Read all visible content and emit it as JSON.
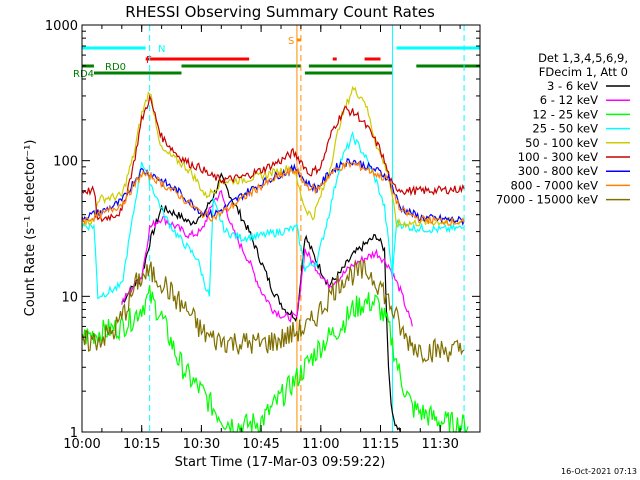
{
  "chart_data": {
    "type": "line",
    "title": "RHESSI Observing Summary Count Rates",
    "xlabel": "Start Time (17-Mar-03 09:59:22)",
    "ylabel": "Count Rate (s⁻¹ detector⁻¹)",
    "y_scale": "log",
    "ylim": [
      1,
      1000
    ],
    "xlim": [
      "10:00",
      "11:40"
    ],
    "x_ticks": [
      "10:00",
      "10:15",
      "10:30",
      "10:45",
      "11:00",
      "11:15",
      "11:30"
    ],
    "y_ticks": [
      "1",
      "10",
      "100",
      "1000"
    ],
    "timestamp": "16-Oct-2021 07:13",
    "legend": {
      "placement": "right",
      "header": [
        "Det 1,3,4,5,6,9,",
        "FDecim 1, Att 0"
      ]
    },
    "flags": [
      {
        "label": "N",
        "color": "#00ffff",
        "intervals": [
          [
            "10:00",
            "10:16"
          ],
          [
            "11:19",
            "11:40"
          ]
        ]
      },
      {
        "label": "F",
        "color": "#ff0000",
        "intervals": [
          [
            "10:16",
            "10:42"
          ],
          [
            "11:03",
            "11:04"
          ],
          [
            "11:11",
            "11:15"
          ]
        ]
      },
      {
        "label": "S",
        "color": "#ff8c00",
        "intervals": [
          [
            "10:54",
            "10:55"
          ]
        ]
      },
      {
        "label": "RD0",
        "color": "#007f00",
        "intervals": [
          [
            "10:00",
            "10:03"
          ],
          [
            "10:25",
            "10:55"
          ],
          [
            "10:57",
            "11:18"
          ],
          [
            "11:24",
            "11:40"
          ]
        ]
      },
      {
        "label": "RD4",
        "color": "#007f00",
        "intervals": [
          [
            "10:03",
            "10:25"
          ],
          [
            "10:56",
            "11:18"
          ]
        ]
      }
    ],
    "markers": [
      {
        "type": "dashed",
        "color": "#00ffff",
        "x": "10:17"
      },
      {
        "type": "solid",
        "color": "#00ffff",
        "x": "11:18"
      },
      {
        "type": "dashed",
        "color": "#00ffff",
        "x": "11:36"
      },
      {
        "type": "solid",
        "color": "#ff8c00",
        "x": "10:54"
      },
      {
        "type": "dashed",
        "color": "#ff8c00",
        "x": "10:55"
      }
    ],
    "series": [
      {
        "name": "3 - 6 keV",
        "color": "#000000",
        "points": [
          [
            "10:10",
            9
          ],
          [
            "10:13",
            12
          ],
          [
            "10:15",
            14
          ],
          [
            "10:17",
            25
          ],
          [
            "10:20",
            45
          ],
          [
            "10:24",
            40
          ],
          [
            "10:27",
            35
          ],
          [
            "10:30",
            38
          ],
          [
            "10:33",
            55
          ],
          [
            "10:35",
            75
          ],
          [
            "10:38",
            50
          ],
          [
            "10:42",
            30
          ],
          [
            "10:45",
            18
          ],
          [
            "10:48",
            11
          ],
          [
            "10:51",
            8
          ],
          [
            "10:54",
            7
          ],
          [
            "10:56",
            28
          ],
          [
            "10:59",
            18
          ],
          [
            "11:02",
            12
          ],
          [
            "11:05",
            15
          ],
          [
            "11:08",
            20
          ],
          [
            "11:11",
            24
          ],
          [
            "11:14",
            28
          ],
          [
            "11:16",
            22
          ],
          [
            "11:17",
            3
          ],
          [
            "11:18",
            1.3
          ],
          [
            "11:20",
            1
          ]
        ]
      },
      {
        "name": "6 - 12 keV",
        "color": "#ff00ff",
        "points": [
          [
            "10:10",
            9
          ],
          [
            "10:13",
            12
          ],
          [
            "10:15",
            14
          ],
          [
            "10:17",
            32
          ],
          [
            "10:20",
            38
          ],
          [
            "10:24",
            32
          ],
          [
            "10:27",
            28
          ],
          [
            "10:30",
            30
          ],
          [
            "10:33",
            50
          ],
          [
            "10:35",
            58
          ],
          [
            "10:38",
            30
          ],
          [
            "10:42",
            18
          ],
          [
            "10:45",
            11
          ],
          [
            "10:48",
            8
          ],
          [
            "10:51",
            7
          ],
          [
            "10:54",
            7
          ],
          [
            "10:56",
            22
          ],
          [
            "10:59",
            16
          ],
          [
            "11:02",
            12
          ],
          [
            "11:05",
            14
          ],
          [
            "11:08",
            17
          ],
          [
            "11:11",
            19
          ],
          [
            "11:14",
            21
          ],
          [
            "11:17",
            17
          ],
          [
            "11:20",
            11
          ],
          [
            "11:23",
            6
          ]
        ]
      },
      {
        "name": "12 - 25 keV",
        "color": "#00ff00",
        "points": [
          [
            "10:00",
            5
          ],
          [
            "10:10",
            6
          ],
          [
            "10:13",
            7
          ],
          [
            "10:17",
            10
          ],
          [
            "10:20",
            7
          ],
          [
            "10:24",
            3.5
          ],
          [
            "10:27",
            2.5
          ],
          [
            "10:30",
            2
          ],
          [
            "10:33",
            1.5
          ],
          [
            "10:36",
            1.2
          ],
          [
            "10:40",
            1.1
          ],
          [
            "10:45",
            1.2
          ],
          [
            "10:50",
            1.8
          ],
          [
            "10:54",
            2.5
          ],
          [
            "10:56",
            3
          ],
          [
            "10:59",
            4
          ],
          [
            "11:02",
            5
          ],
          [
            "11:05",
            6
          ],
          [
            "11:08",
            8
          ],
          [
            "11:11",
            9
          ],
          [
            "11:14",
            9
          ],
          [
            "11:17",
            6
          ],
          [
            "11:20",
            2.5
          ],
          [
            "11:23",
            1.5
          ],
          [
            "11:30",
            1.2
          ],
          [
            "11:37",
            1.1
          ]
        ]
      },
      {
        "name": "25 - 50 keV",
        "color": "#00ffff",
        "points": [
          [
            "10:00",
            33
          ],
          [
            "10:03",
            33
          ],
          [
            "10:04",
            10
          ],
          [
            "10:10",
            12
          ],
          [
            "10:13",
            42
          ],
          [
            "10:15",
            100
          ],
          [
            "10:18",
            60
          ],
          [
            "10:21",
            38
          ],
          [
            "10:24",
            28
          ],
          [
            "10:27",
            22
          ],
          [
            "10:29",
            19
          ],
          [
            "10:31",
            12
          ],
          [
            "10:32",
            10
          ],
          [
            "10:33",
            50
          ],
          [
            "10:36",
            30
          ],
          [
            "10:40",
            27
          ],
          [
            "10:45",
            28
          ],
          [
            "10:50",
            30
          ],
          [
            "10:54",
            32
          ],
          [
            "10:56",
            16
          ],
          [
            "10:59",
            18
          ],
          [
            "11:02",
            40
          ],
          [
            "11:05",
            100
          ],
          [
            "11:08",
            150
          ],
          [
            "11:11",
            110
          ],
          [
            "11:14",
            70
          ],
          [
            "11:16",
            45
          ],
          [
            "11:18",
            14
          ],
          [
            "11:19",
            35
          ],
          [
            "11:23",
            32
          ],
          [
            "11:30",
            31
          ],
          [
            "11:36",
            32
          ]
        ]
      },
      {
        "name": "50 - 100 keV",
        "color": "#cccc00",
        "points": [
          [
            "10:00",
            36
          ],
          [
            "10:03",
            36
          ],
          [
            "10:04",
            52
          ],
          [
            "10:10",
            55
          ],
          [
            "10:13",
            110
          ],
          [
            "10:15",
            220
          ],
          [
            "10:17",
            330
          ],
          [
            "10:20",
            120
          ],
          [
            "10:24",
            100
          ],
          [
            "10:27",
            85
          ],
          [
            "10:29",
            70
          ],
          [
            "10:31",
            55
          ],
          [
            "10:33",
            60
          ],
          [
            "10:35",
            70
          ],
          [
            "10:40",
            72
          ],
          [
            "10:45",
            77
          ],
          [
            "10:50",
            85
          ],
          [
            "10:53",
            90
          ],
          [
            "10:56",
            45
          ],
          [
            "10:58",
            38
          ],
          [
            "11:02",
            80
          ],
          [
            "11:05",
            200
          ],
          [
            "11:08",
            340
          ],
          [
            "11:11",
            280
          ],
          [
            "11:14",
            130
          ],
          [
            "11:17",
            80
          ],
          [
            "11:19",
            34
          ],
          [
            "11:25",
            35
          ],
          [
            "11:36",
            36
          ]
        ]
      },
      {
        "name": "100 - 300 keV",
        "color": "#c80000",
        "points": [
          [
            "10:00",
            60
          ],
          [
            "10:03",
            60
          ],
          [
            "10:04",
            36
          ],
          [
            "10:10",
            42
          ],
          [
            "10:13",
            95
          ],
          [
            "10:15",
            200
          ],
          [
            "10:17",
            290
          ],
          [
            "10:20",
            150
          ],
          [
            "10:24",
            110
          ],
          [
            "10:27",
            95
          ],
          [
            "10:30",
            88
          ],
          [
            "10:32",
            78
          ],
          [
            "10:35",
            72
          ],
          [
            "10:40",
            75
          ],
          [
            "10:45",
            85
          ],
          [
            "10:50",
            100
          ],
          [
            "10:53",
            115
          ],
          [
            "10:55",
            100
          ],
          [
            "10:57",
            80
          ],
          [
            "11:00",
            90
          ],
          [
            "11:03",
            170
          ],
          [
            "11:06",
            240
          ],
          [
            "11:09",
            220
          ],
          [
            "11:12",
            170
          ],
          [
            "11:15",
            120
          ],
          [
            "11:18",
            65
          ],
          [
            "11:21",
            60
          ],
          [
            "11:27",
            60
          ],
          [
            "11:36",
            62
          ]
        ]
      },
      {
        "name": "300 - 800 keV",
        "color": "#0000ff",
        "points": [
          [
            "10:00",
            38
          ],
          [
            "10:05",
            42
          ],
          [
            "10:10",
            50
          ],
          [
            "10:13",
            70
          ],
          [
            "10:15",
            85
          ],
          [
            "10:18",
            78
          ],
          [
            "10:21",
            68
          ],
          [
            "10:24",
            60
          ],
          [
            "10:27",
            50
          ],
          [
            "10:30",
            42
          ],
          [
            "10:33",
            40
          ],
          [
            "10:36",
            45
          ],
          [
            "10:40",
            55
          ],
          [
            "10:45",
            68
          ],
          [
            "10:50",
            80
          ],
          [
            "10:54",
            88
          ],
          [
            "10:56",
            70
          ],
          [
            "10:59",
            62
          ],
          [
            "11:02",
            80
          ],
          [
            "11:05",
            95
          ],
          [
            "11:08",
            100
          ],
          [
            "11:11",
            92
          ],
          [
            "11:14",
            85
          ],
          [
            "11:17",
            75
          ],
          [
            "11:20",
            45
          ],
          [
            "11:25",
            38
          ],
          [
            "11:36",
            36
          ]
        ]
      },
      {
        "name": "800 - 7000 keV",
        "color": "#ff8000",
        "points": [
          [
            "10:00",
            36
          ],
          [
            "10:05",
            40
          ],
          [
            "10:10",
            48
          ],
          [
            "10:13",
            65
          ],
          [
            "10:15",
            80
          ],
          [
            "10:18",
            75
          ],
          [
            "10:21",
            65
          ],
          [
            "10:24",
            57
          ],
          [
            "10:27",
            48
          ],
          [
            "10:30",
            41
          ],
          [
            "10:33",
            38
          ],
          [
            "10:36",
            43
          ],
          [
            "10:40",
            52
          ],
          [
            "10:45",
            65
          ],
          [
            "10:50",
            78
          ],
          [
            "10:54",
            85
          ],
          [
            "10:56",
            67
          ],
          [
            "10:59",
            60
          ],
          [
            "11:02",
            78
          ],
          [
            "11:05",
            90
          ],
          [
            "11:08",
            95
          ],
          [
            "11:11",
            88
          ],
          [
            "11:14",
            80
          ],
          [
            "11:17",
            72
          ],
          [
            "11:20",
            43
          ],
          [
            "11:25",
            37
          ],
          [
            "11:36",
            35
          ]
        ]
      },
      {
        "name": "7000 - 15000 keV",
        "color": "#807000",
        "points": [
          [
            "10:00",
            4.5
          ],
          [
            "10:04",
            4.8
          ],
          [
            "10:08",
            5.5
          ],
          [
            "10:11",
            8
          ],
          [
            "10:14",
            13
          ],
          [
            "10:17",
            15
          ],
          [
            "10:20",
            13
          ],
          [
            "10:23",
            10
          ],
          [
            "10:27",
            7.5
          ],
          [
            "10:30",
            5.5
          ],
          [
            "10:33",
            4.8
          ],
          [
            "10:38",
            4.6
          ],
          [
            "10:42",
            4.5
          ],
          [
            "10:46",
            4.5
          ],
          [
            "10:50",
            4.8
          ],
          [
            "10:54",
            5.5
          ],
          [
            "10:57",
            6
          ],
          [
            "11:00",
            8
          ],
          [
            "11:03",
            11
          ],
          [
            "11:06",
            14
          ],
          [
            "11:09",
            15
          ],
          [
            "11:12",
            15
          ],
          [
            "11:15",
            12
          ],
          [
            "11:18",
            8
          ],
          [
            "11:21",
            5
          ],
          [
            "11:25",
            4
          ],
          [
            "11:30",
            4
          ],
          [
            "11:36",
            4
          ]
        ]
      }
    ]
  }
}
